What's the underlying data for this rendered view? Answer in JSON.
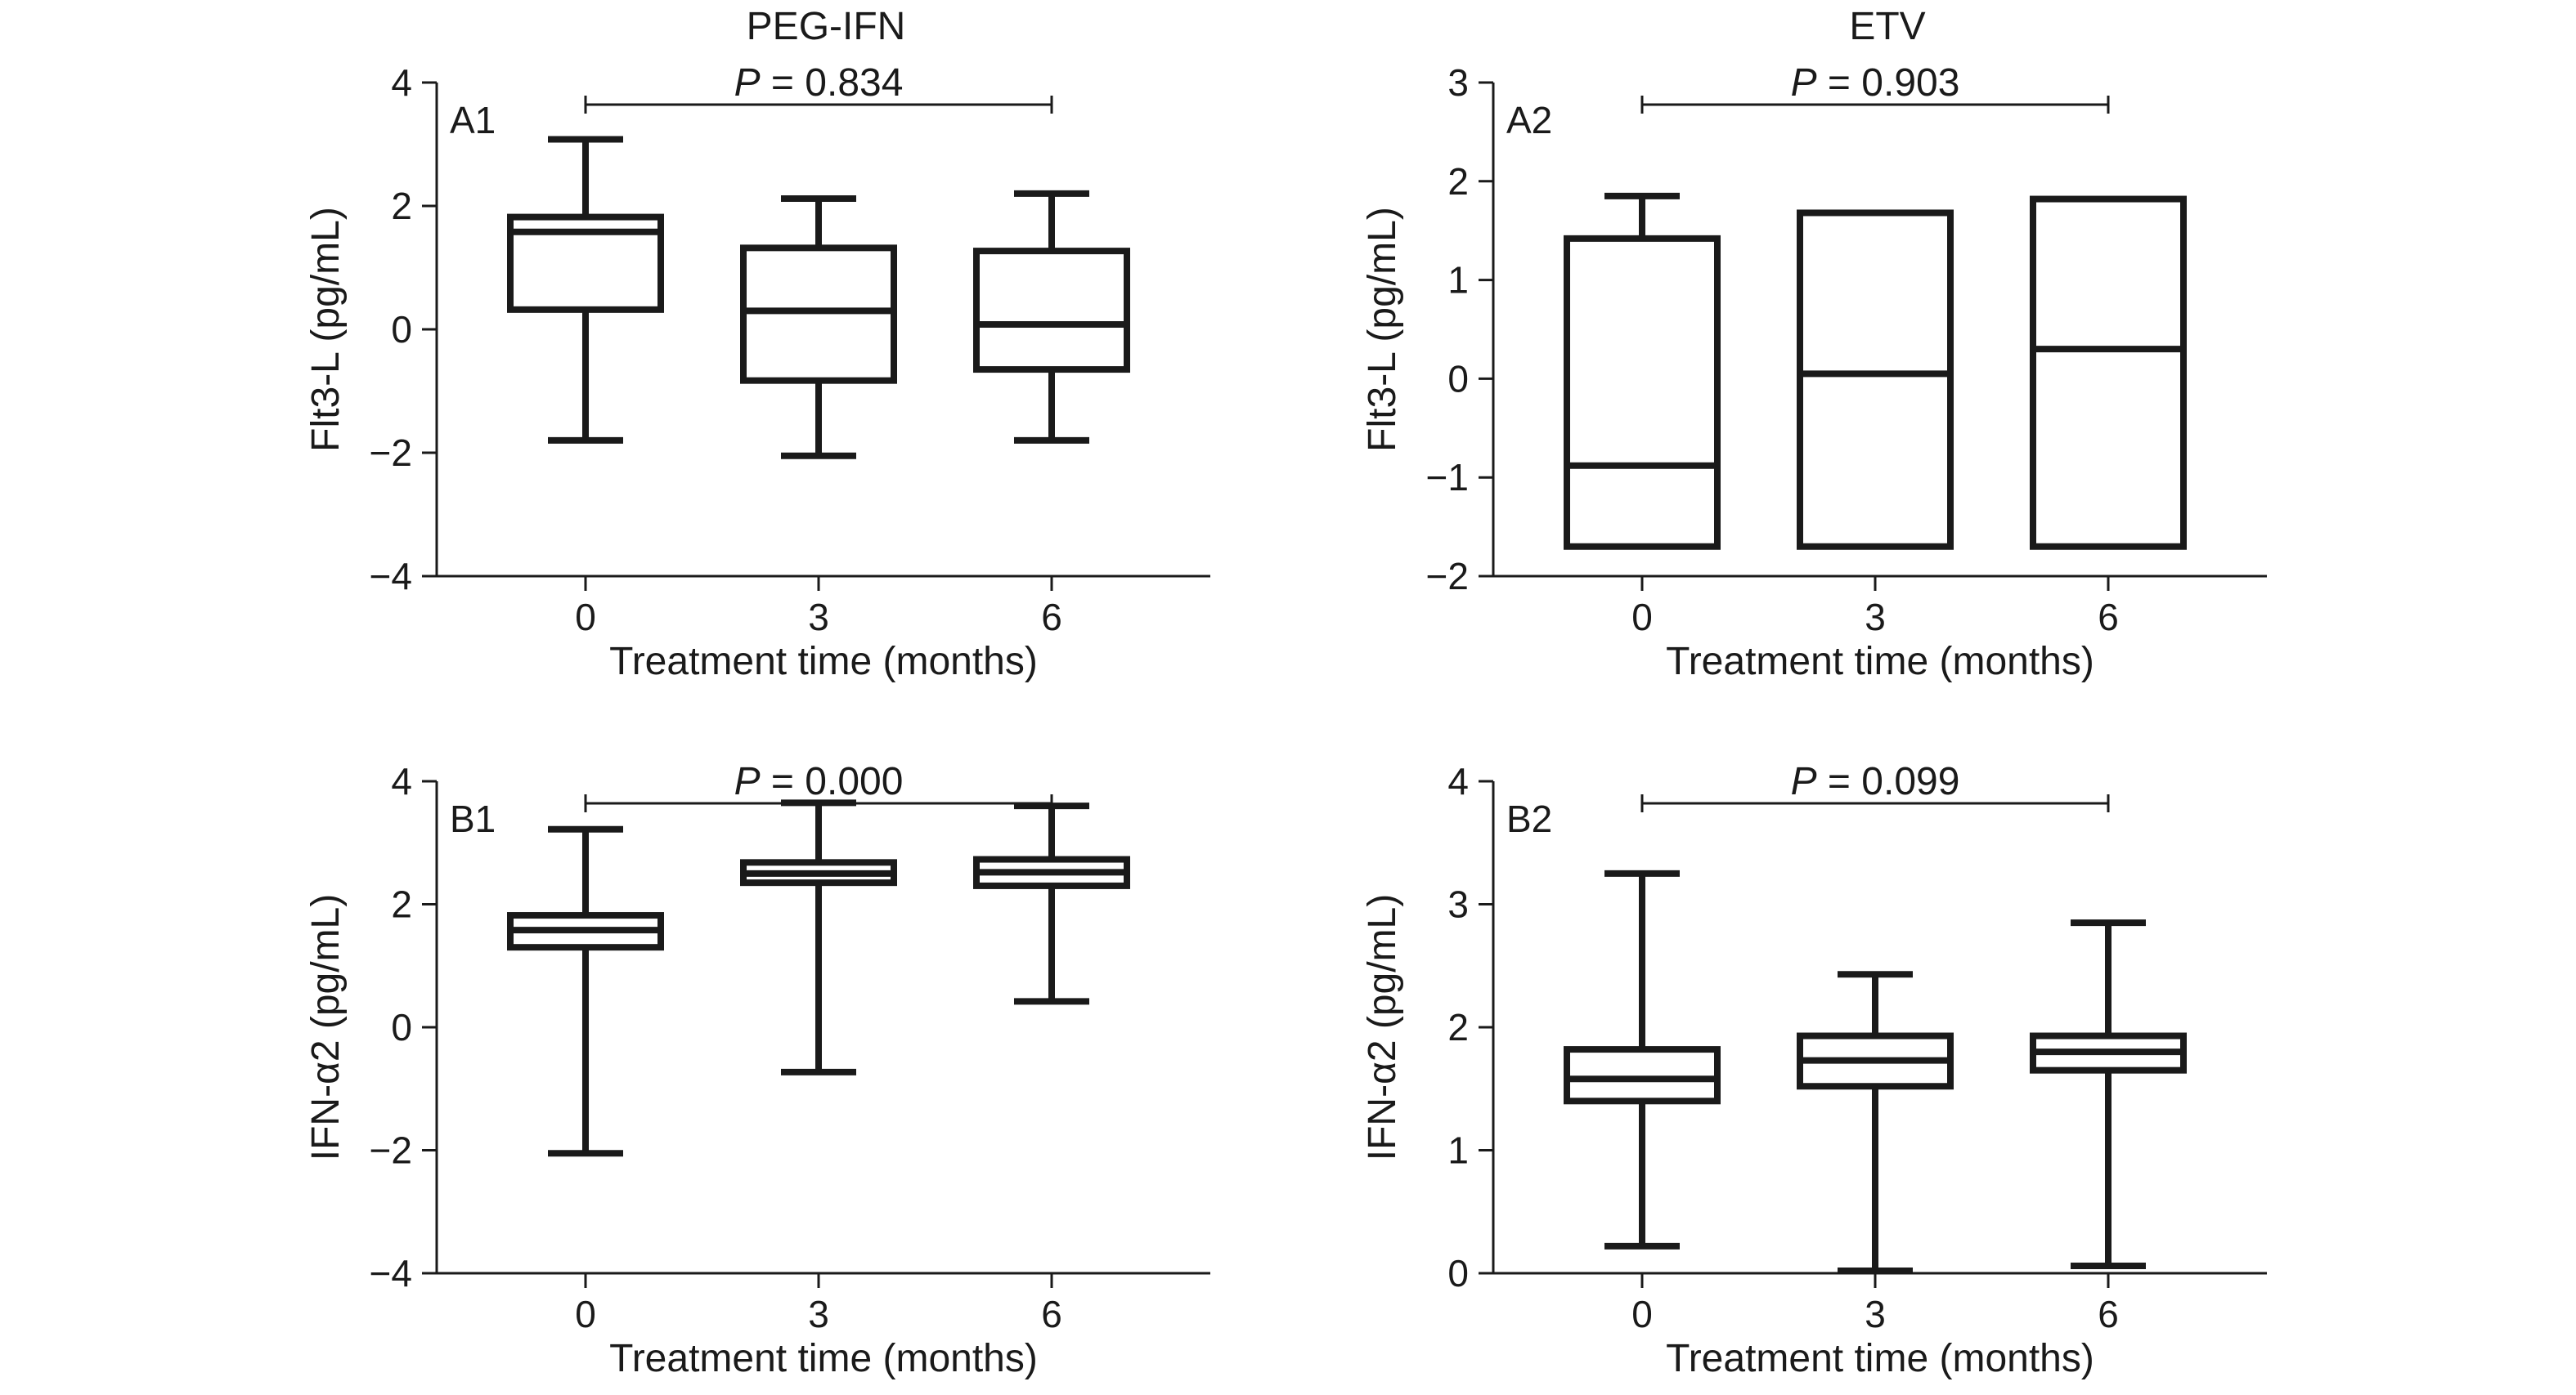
{
  "figure": {
    "column_titles": [
      "PEG-IFN",
      "ETV"
    ]
  },
  "chart_data": [
    {
      "type": "box",
      "panel_label": "A1",
      "title": "PEG-IFN",
      "xlabel": "Treatment time (months)",
      "ylabel": "Flt3-L (pg/mL)",
      "ylim": [
        -4,
        4
      ],
      "yticks": [
        4,
        2,
        0,
        -2,
        -4
      ],
      "categories": [
        "0",
        "3",
        "6"
      ],
      "boxes": [
        {
          "min": -1.8,
          "q1": 0.32,
          "median": 1.58,
          "q3": 1.82,
          "max": 3.08
        },
        {
          "min": -2.05,
          "q1": -0.83,
          "median": 0.3,
          "q3": 1.32,
          "max": 2.12
        },
        {
          "min": -1.8,
          "q1": -0.65,
          "median": 0.08,
          "q3": 1.27,
          "max": 2.2
        }
      ],
      "pvalue": {
        "label": "P",
        "text": " = 0.834"
      },
      "grid": false
    },
    {
      "type": "box",
      "panel_label": "A2",
      "title": "ETV",
      "xlabel": "Treatment time (months)",
      "ylabel": "Flt3-L (pg/mL)",
      "ylim": [
        -2,
        3
      ],
      "yticks": [
        3,
        2,
        1,
        0,
        -1,
        -2
      ],
      "categories": [
        "0",
        "3",
        "6"
      ],
      "boxes": [
        {
          "min": -1.7,
          "q1": -1.7,
          "median": -0.88,
          "q3": 1.42,
          "max": 1.85
        },
        {
          "min": -1.7,
          "q1": -1.7,
          "median": 0.05,
          "q3": 1.68,
          "max": 1.68
        },
        {
          "min": -1.7,
          "q1": -1.7,
          "median": 0.3,
          "q3": 1.82,
          "max": 1.82
        }
      ],
      "pvalue": {
        "label": "P",
        "text": " = 0.903"
      },
      "grid": false
    },
    {
      "type": "box",
      "panel_label": "B1",
      "title": "",
      "xlabel": "Treatment time (months)",
      "ylabel": "IFN-α2 (pg/mL)",
      "ylim": [
        -4,
        4
      ],
      "yticks": [
        4,
        2,
        0,
        -2,
        -4
      ],
      "categories": [
        "0",
        "3",
        "6"
      ],
      "boxes": [
        {
          "min": -2.05,
          "q1": 1.3,
          "median": 1.58,
          "q3": 1.82,
          "max": 3.22
        },
        {
          "min": -0.73,
          "q1": 2.35,
          "median": 2.5,
          "q3": 2.68,
          "max": 3.65
        },
        {
          "min": 0.42,
          "q1": 2.3,
          "median": 2.52,
          "q3": 2.73,
          "max": 3.6
        }
      ],
      "pvalue": {
        "label": "P",
        "text": " = 0.000"
      },
      "grid": false
    },
    {
      "type": "box",
      "panel_label": "B2",
      "title": "",
      "xlabel": "Treatment time (months)",
      "ylabel": "IFN-α2 (pg/mL)",
      "ylim": [
        0,
        4
      ],
      "yticks": [
        4,
        3,
        2,
        1,
        0
      ],
      "categories": [
        "0",
        "3",
        "6"
      ],
      "boxes": [
        {
          "min": 0.22,
          "q1": 1.4,
          "median": 1.58,
          "q3": 1.82,
          "max": 3.25
        },
        {
          "min": 0.02,
          "q1": 1.52,
          "median": 1.73,
          "q3": 1.93,
          "max": 2.43
        },
        {
          "min": 0.06,
          "q1": 1.65,
          "median": 1.8,
          "q3": 1.93,
          "max": 2.85
        }
      ],
      "pvalue": {
        "label": "P",
        "text": " = 0.099"
      },
      "grid": false
    }
  ]
}
